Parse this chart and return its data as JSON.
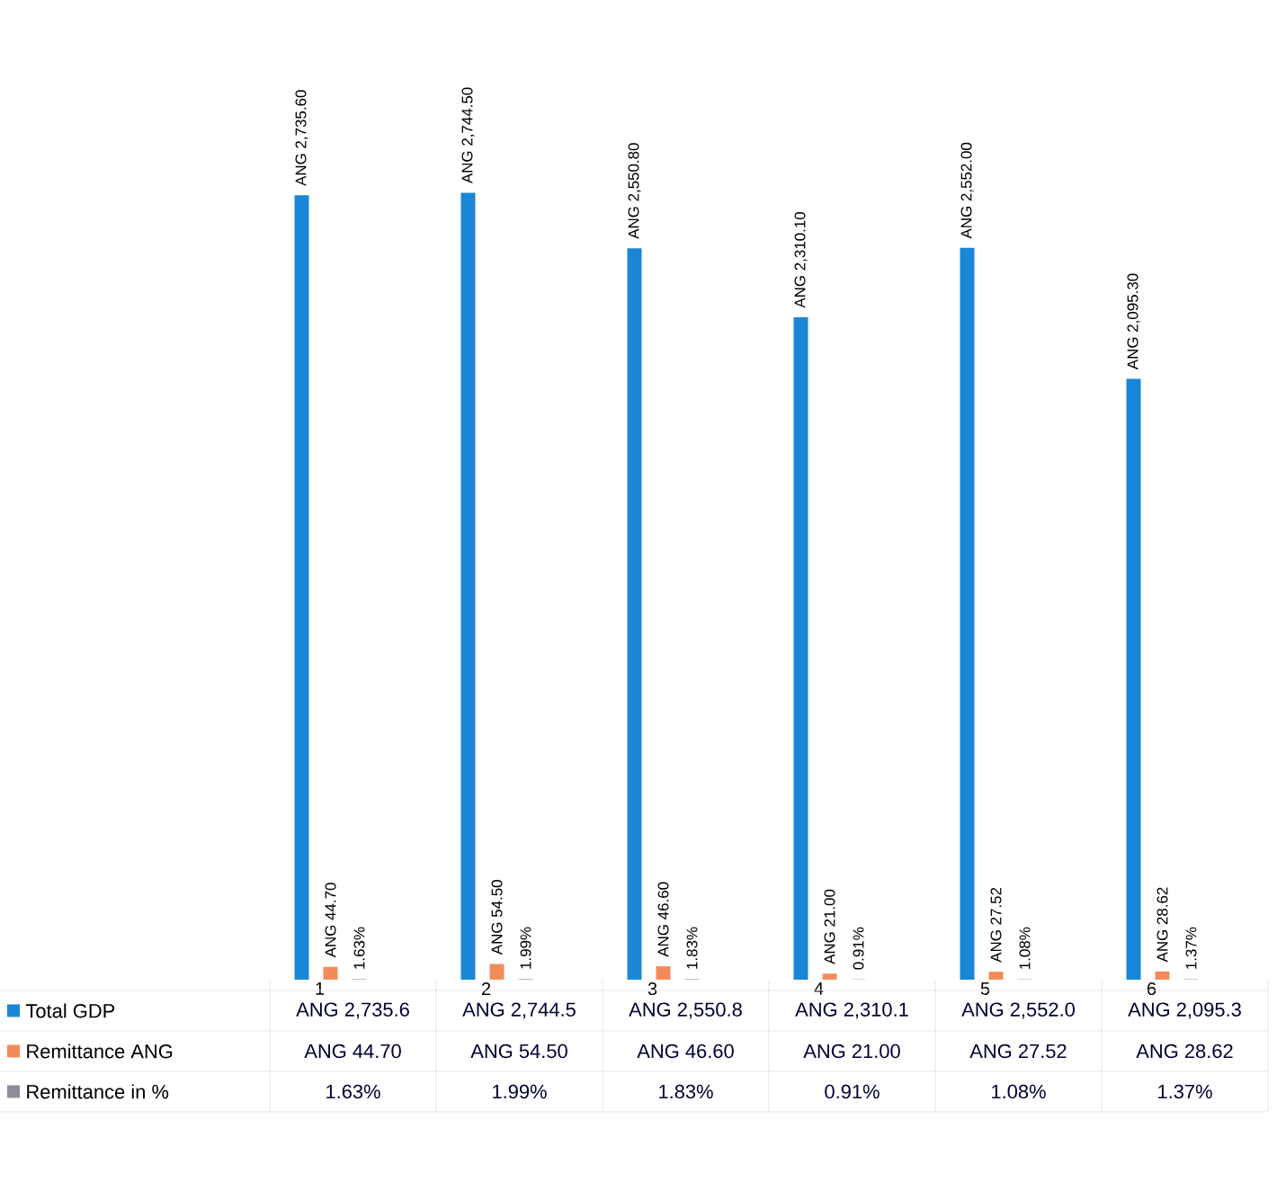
{
  "chart_data": {
    "type": "bar",
    "categories": [
      "1",
      "2",
      "3",
      "4",
      "5",
      "6"
    ],
    "legend": "bottom left",
    "series": [
      {
        "name": "Total GDP",
        "color": "#1a86d8",
        "values": [
          2735.6,
          2744.5,
          2550.8,
          2310.1,
          2552.0,
          2095.3
        ],
        "value_labels": [
          "ANG 2,735.60",
          "ANG 2,744.50",
          "ANG 2,550.80",
          "ANG 2,310.10",
          "ANG 2,552.00",
          "ANG 2,095.30"
        ]
      },
      {
        "name": "Remittance ANG",
        "color": "#f28b5a",
        "values": [
          44.7,
          54.5,
          46.6,
          21.0,
          27.52,
          28.62
        ],
        "value_labels": [
          "ANG 44.70",
          "ANG 54.50",
          "ANG 46.60",
          "ANG 21.00",
          "ANG 27.52",
          "ANG 28.62"
        ]
      },
      {
        "name": "Remittance in %",
        "color": "#8c8c9c",
        "values": [
          1.63,
          1.99,
          1.83,
          0.91,
          1.08,
          1.37
        ],
        "value_labels": [
          "1.63%",
          "1.99%",
          "1.83%",
          "0.91%",
          "1.08%",
          "1.37%"
        ]
      }
    ],
    "annotations": [
      "ANG 2,735.6",
      "ANG 2,744.5",
      "ANG 2,550.8",
      "ANG 2,310.1",
      "ANG 2,552.0",
      "ANG 2,095.3",
      "ANG 44.70",
      "ANG 54.50",
      "ANG 46.60",
      "ANG 21.00",
      "ANG 27.52",
      "ANG 28.62",
      "1.63%",
      "1.99%",
      "1.83%",
      "0.91%",
      "1.08%",
      "1.37%"
    ]
  }
}
